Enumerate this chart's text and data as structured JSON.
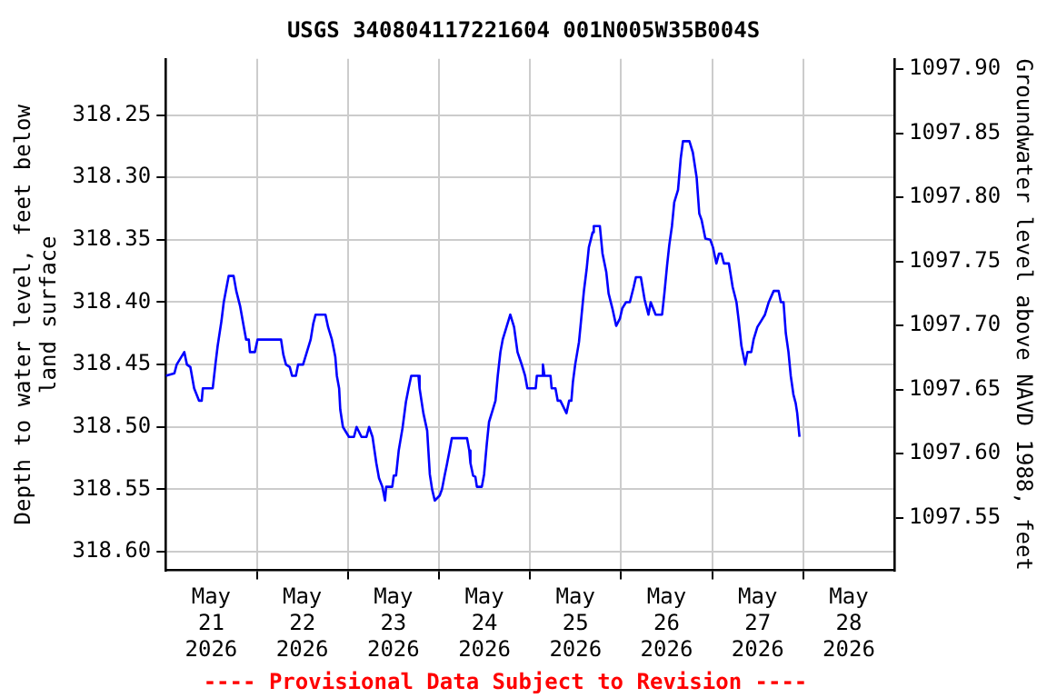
{
  "chart_data": {
    "type": "line",
    "title": "USGS 340804117221604 001N005W35B004S",
    "ylabel": "Depth to water level, feet below land surface",
    "y2label": "Groundwater level above NAVD 1988, feet",
    "annotations": [
      "---- Provisional Data Subject to Revision ----"
    ],
    "xlim": [
      "2026-05-21T00:00",
      "2026-05-29T00:00"
    ],
    "xticks": [
      {
        "value": "2026-05-21T12:00",
        "label": "May\n21\n2026"
      },
      {
        "value": "2026-05-22T00:00",
        "label": null
      },
      {
        "value": "2026-05-22T12:00",
        "label": "May\n22\n2026"
      },
      {
        "value": "2026-05-23T00:00",
        "label": null
      },
      {
        "value": "2026-05-23T12:00",
        "label": "May\n23\n2026"
      },
      {
        "value": "2026-05-24T00:00",
        "label": null
      },
      {
        "value": "2026-05-24T12:00",
        "label": "May\n24\n2026"
      },
      {
        "value": "2026-05-25T00:00",
        "label": null
      },
      {
        "value": "2026-05-25T12:00",
        "label": "May\n25\n2026"
      },
      {
        "value": "2026-05-26T00:00",
        "label": null
      },
      {
        "value": "2026-05-26T12:00",
        "label": "May\n26\n2026"
      },
      {
        "value": "2026-05-27T00:00",
        "label": null
      },
      {
        "value": "2026-05-27T12:00",
        "label": "May\n27\n2026"
      },
      {
        "value": "2026-05-28T00:00",
        "label": null
      },
      {
        "value": "2026-05-28T12:00",
        "label": "May\n28\n2026"
      }
    ],
    "ylim": [
      318.615,
      318.205
    ],
    "yticks": [
      {
        "value": 318.25,
        "label": "318.25"
      },
      {
        "value": 318.3,
        "label": "318.30"
      },
      {
        "value": 318.35,
        "label": "318.35"
      },
      {
        "value": 318.4,
        "label": "318.40"
      },
      {
        "value": 318.45,
        "label": "318.45"
      },
      {
        "value": 318.5,
        "label": "318.50"
      },
      {
        "value": 318.55,
        "label": "318.55"
      },
      {
        "value": 318.6,
        "label": "318.60"
      }
    ],
    "y2lim": [
      1097.509,
      1097.908
    ],
    "y2ticks": [
      {
        "value": 1097.55,
        "label": "1097.55"
      },
      {
        "value": 1097.6,
        "label": "1097.60"
      },
      {
        "value": 1097.65,
        "label": "1097.65"
      },
      {
        "value": 1097.7,
        "label": "1097.70"
      },
      {
        "value": 1097.75,
        "label": "1097.75"
      },
      {
        "value": 1097.8,
        "label": "1097.80"
      },
      {
        "value": 1097.85,
        "label": "1097.85"
      },
      {
        "value": 1097.9,
        "label": "1097.90"
      }
    ],
    "grid": true,
    "legend": false,
    "marker": "none",
    "line_style": "solid",
    "series": [
      {
        "color": "#0000ff",
        "x": [
          "2026-05-21T00:00",
          "2026-05-21T02:18",
          "2026-05-21T02:54",
          "2026-05-21T04:54",
          "2026-05-21T05:36",
          "2026-05-21T06:30",
          "2026-05-21T07:30",
          "2026-05-21T08:48",
          "2026-05-21T09:30",
          "2026-05-21T09:48",
          "2026-05-21T12:24",
          "2026-05-21T13:06",
          "2026-05-21T13:42",
          "2026-05-21T14:42",
          "2026-05-21T15:18",
          "2026-05-21T16:36",
          "2026-05-21T17:54",
          "2026-05-21T18:36",
          "2026-05-21T19:36",
          "2026-05-21T20:36",
          "2026-05-21T21:12",
          "2026-05-21T21:54",
          "2026-05-21T22:12",
          "2026-05-21T23:30",
          "2026-05-22T00:12",
          "2026-05-22T06:24",
          "2026-05-22T07:00",
          "2026-05-22T07:42",
          "2026-05-22T08:42",
          "2026-05-22T09:18",
          "2026-05-22T10:18",
          "2026-05-22T10:54",
          "2026-05-22T12:12",
          "2026-05-22T13:12",
          "2026-05-22T14:12",
          "2026-05-22T14:54",
          "2026-05-22T15:30",
          "2026-05-22T18:06",
          "2026-05-22T18:48",
          "2026-05-22T19:48",
          "2026-05-22T20:42",
          "2026-05-22T21:06",
          "2026-05-22T21:42",
          "2026-05-22T22:00",
          "2026-05-22T22:42",
          "2026-05-23T00:18",
          "2026-05-23T01:36",
          "2026-05-23T02:18",
          "2026-05-23T03:36",
          "2026-05-23T04:54",
          "2026-05-23T05:36",
          "2026-05-23T06:30",
          "2026-05-23T07:30",
          "2026-05-23T08:12",
          "2026-05-23T09:06",
          "2026-05-23T09:48",
          "2026-05-23T10:06",
          "2026-05-23T11:42",
          "2026-05-23T12:06",
          "2026-05-23T12:42",
          "2026-05-23T13:24",
          "2026-05-23T14:24",
          "2026-05-23T15:18",
          "2026-05-23T16:00",
          "2026-05-23T16:42",
          "2026-05-23T18:36",
          "2026-05-23T18:54",
          "2026-05-23T19:54",
          "2026-05-23T20:54",
          "2026-05-23T21:36",
          "2026-05-23T22:12",
          "2026-05-23T22:54",
          "2026-05-24T00:12",
          "2026-05-24T00:48",
          "2026-05-24T01:30",
          "2026-05-24T02:06",
          "2026-05-24T02:48",
          "2026-05-24T03:24",
          "2026-05-24T07:24",
          "2026-05-24T08:00",
          "2026-05-24T08:18",
          "2026-05-24T09:00",
          "2026-05-24T09:36",
          "2026-05-24T10:00",
          "2026-05-24T11:18",
          "2026-05-24T11:54",
          "2026-05-24T12:36",
          "2026-05-24T13:12",
          "2026-05-24T14:12",
          "2026-05-24T14:54",
          "2026-05-24T15:30",
          "2026-05-24T16:12",
          "2026-05-24T16:48",
          "2026-05-24T17:48",
          "2026-05-24T18:48",
          "2026-05-24T19:48",
          "2026-05-24T20:42",
          "2026-05-24T21:42",
          "2026-05-24T22:42",
          "2026-05-24T23:18",
          "2026-05-25T01:30",
          "2026-05-25T01:48",
          "2026-05-25T03:06",
          "2026-05-25T03:24",
          "2026-05-25T03:48",
          "2026-05-25T05:24",
          "2026-05-25T05:42",
          "2026-05-25T06:42",
          "2026-05-25T07:18",
          "2026-05-25T08:00",
          "2026-05-25T09:36",
          "2026-05-25T10:18",
          "2026-05-25T10:54",
          "2026-05-25T11:18",
          "2026-05-25T11:54",
          "2026-05-25T12:54",
          "2026-05-25T13:36",
          "2026-05-25T14:12",
          "2026-05-25T14:54",
          "2026-05-25T15:30",
          "2026-05-25T16:30",
          "2026-05-25T16:48",
          "2026-05-25T18:24",
          "2026-05-25T19:06",
          "2026-05-25T20:06",
          "2026-05-25T20:42",
          "2026-05-25T21:42",
          "2026-05-25T22:42",
          "2026-05-25T23:42",
          "2026-05-26T00:18",
          "2026-05-26T01:18",
          "2026-05-26T02:18",
          "2026-05-26T03:18",
          "2026-05-26T03:54",
          "2026-05-26T05:12",
          "2026-05-26T06:12",
          "2026-05-26T07:12",
          "2026-05-26T07:48",
          "2026-05-26T09:06",
          "2026-05-26T10:48",
          "2026-05-26T11:24",
          "2026-05-26T12:06",
          "2026-05-26T12:42",
          "2026-05-26T13:24",
          "2026-05-26T14:00",
          "2026-05-26T15:00",
          "2026-05-26T15:42",
          "2026-05-26T16:18",
          "2026-05-26T18:00",
          "2026-05-26T18:54",
          "2026-05-26T19:54",
          "2026-05-26T20:36",
          "2026-05-26T21:12",
          "2026-05-26T22:12",
          "2026-05-26T23:30",
          "2026-05-27T00:12",
          "2026-05-27T01:06",
          "2026-05-27T01:48",
          "2026-05-27T02:24",
          "2026-05-27T03:06",
          "2026-05-27T04:24",
          "2026-05-27T05:24",
          "2026-05-27T06:24",
          "2026-05-27T07:00",
          "2026-05-27T07:42",
          "2026-05-27T08:42",
          "2026-05-27T09:18",
          "2026-05-27T10:18",
          "2026-05-27T10:54",
          "2026-05-27T11:54",
          "2026-05-27T12:54",
          "2026-05-27T13:54",
          "2026-05-27T14:54",
          "2026-05-27T16:12",
          "2026-05-27T17:30",
          "2026-05-27T18:06",
          "2026-05-27T18:48",
          "2026-05-27T19:24",
          "2026-05-27T20:06",
          "2026-05-27T20:42",
          "2026-05-27T21:24",
          "2026-05-27T22:00",
          "2026-05-27T22:24",
          "2026-05-27T23:00"
        ],
        "values": [
          318.459,
          318.457,
          318.45,
          318.44,
          318.45,
          318.452,
          318.469,
          318.479,
          318.479,
          318.469,
          318.469,
          318.45,
          318.435,
          318.415,
          318.4,
          318.379,
          318.379,
          318.391,
          318.403,
          318.42,
          318.43,
          318.43,
          318.44,
          318.44,
          318.43,
          318.43,
          318.442,
          318.45,
          318.452,
          318.459,
          318.459,
          318.45,
          318.45,
          318.44,
          318.43,
          318.417,
          318.41,
          318.41,
          318.42,
          318.43,
          318.444,
          318.459,
          318.469,
          318.486,
          318.5,
          318.508,
          318.508,
          318.5,
          318.508,
          318.508,
          318.5,
          318.508,
          318.529,
          318.541,
          318.548,
          318.559,
          318.548,
          318.548,
          318.539,
          318.539,
          318.519,
          318.501,
          318.48,
          318.469,
          318.459,
          318.459,
          318.469,
          318.489,
          318.503,
          318.538,
          318.55,
          318.559,
          318.555,
          318.55,
          318.539,
          318.53,
          318.519,
          318.509,
          318.509,
          318.519,
          318.529,
          318.539,
          318.54,
          318.548,
          318.548,
          318.538,
          318.514,
          318.496,
          318.486,
          318.479,
          318.459,
          318.44,
          318.43,
          318.42,
          318.41,
          318.42,
          318.44,
          318.449,
          318.459,
          318.469,
          318.469,
          318.459,
          318.459,
          318.45,
          318.459,
          318.459,
          318.469,
          318.469,
          318.479,
          318.479,
          318.489,
          318.479,
          318.479,
          318.464,
          318.45,
          318.432,
          318.41,
          318.391,
          318.374,
          318.356,
          318.344,
          318.339,
          318.339,
          318.361,
          318.376,
          318.393,
          318.405,
          318.419,
          318.413,
          318.405,
          318.4,
          318.4,
          318.388,
          318.38,
          318.38,
          318.398,
          318.41,
          318.4,
          318.41,
          318.41,
          318.393,
          318.371,
          318.354,
          318.339,
          318.32,
          318.31,
          318.285,
          318.271,
          318.271,
          318.28,
          318.3,
          318.329,
          318.334,
          318.349,
          318.35,
          318.356,
          318.369,
          318.361,
          318.361,
          318.369,
          318.369,
          318.388,
          318.4,
          318.415,
          318.435,
          318.45,
          318.44,
          318.44,
          318.43,
          318.42,
          318.415,
          318.41,
          318.4,
          318.391,
          318.391,
          318.4,
          318.4,
          318.425,
          318.44,
          318.459,
          318.474,
          318.481,
          318.489,
          318.508
        ]
      }
    ]
  }
}
